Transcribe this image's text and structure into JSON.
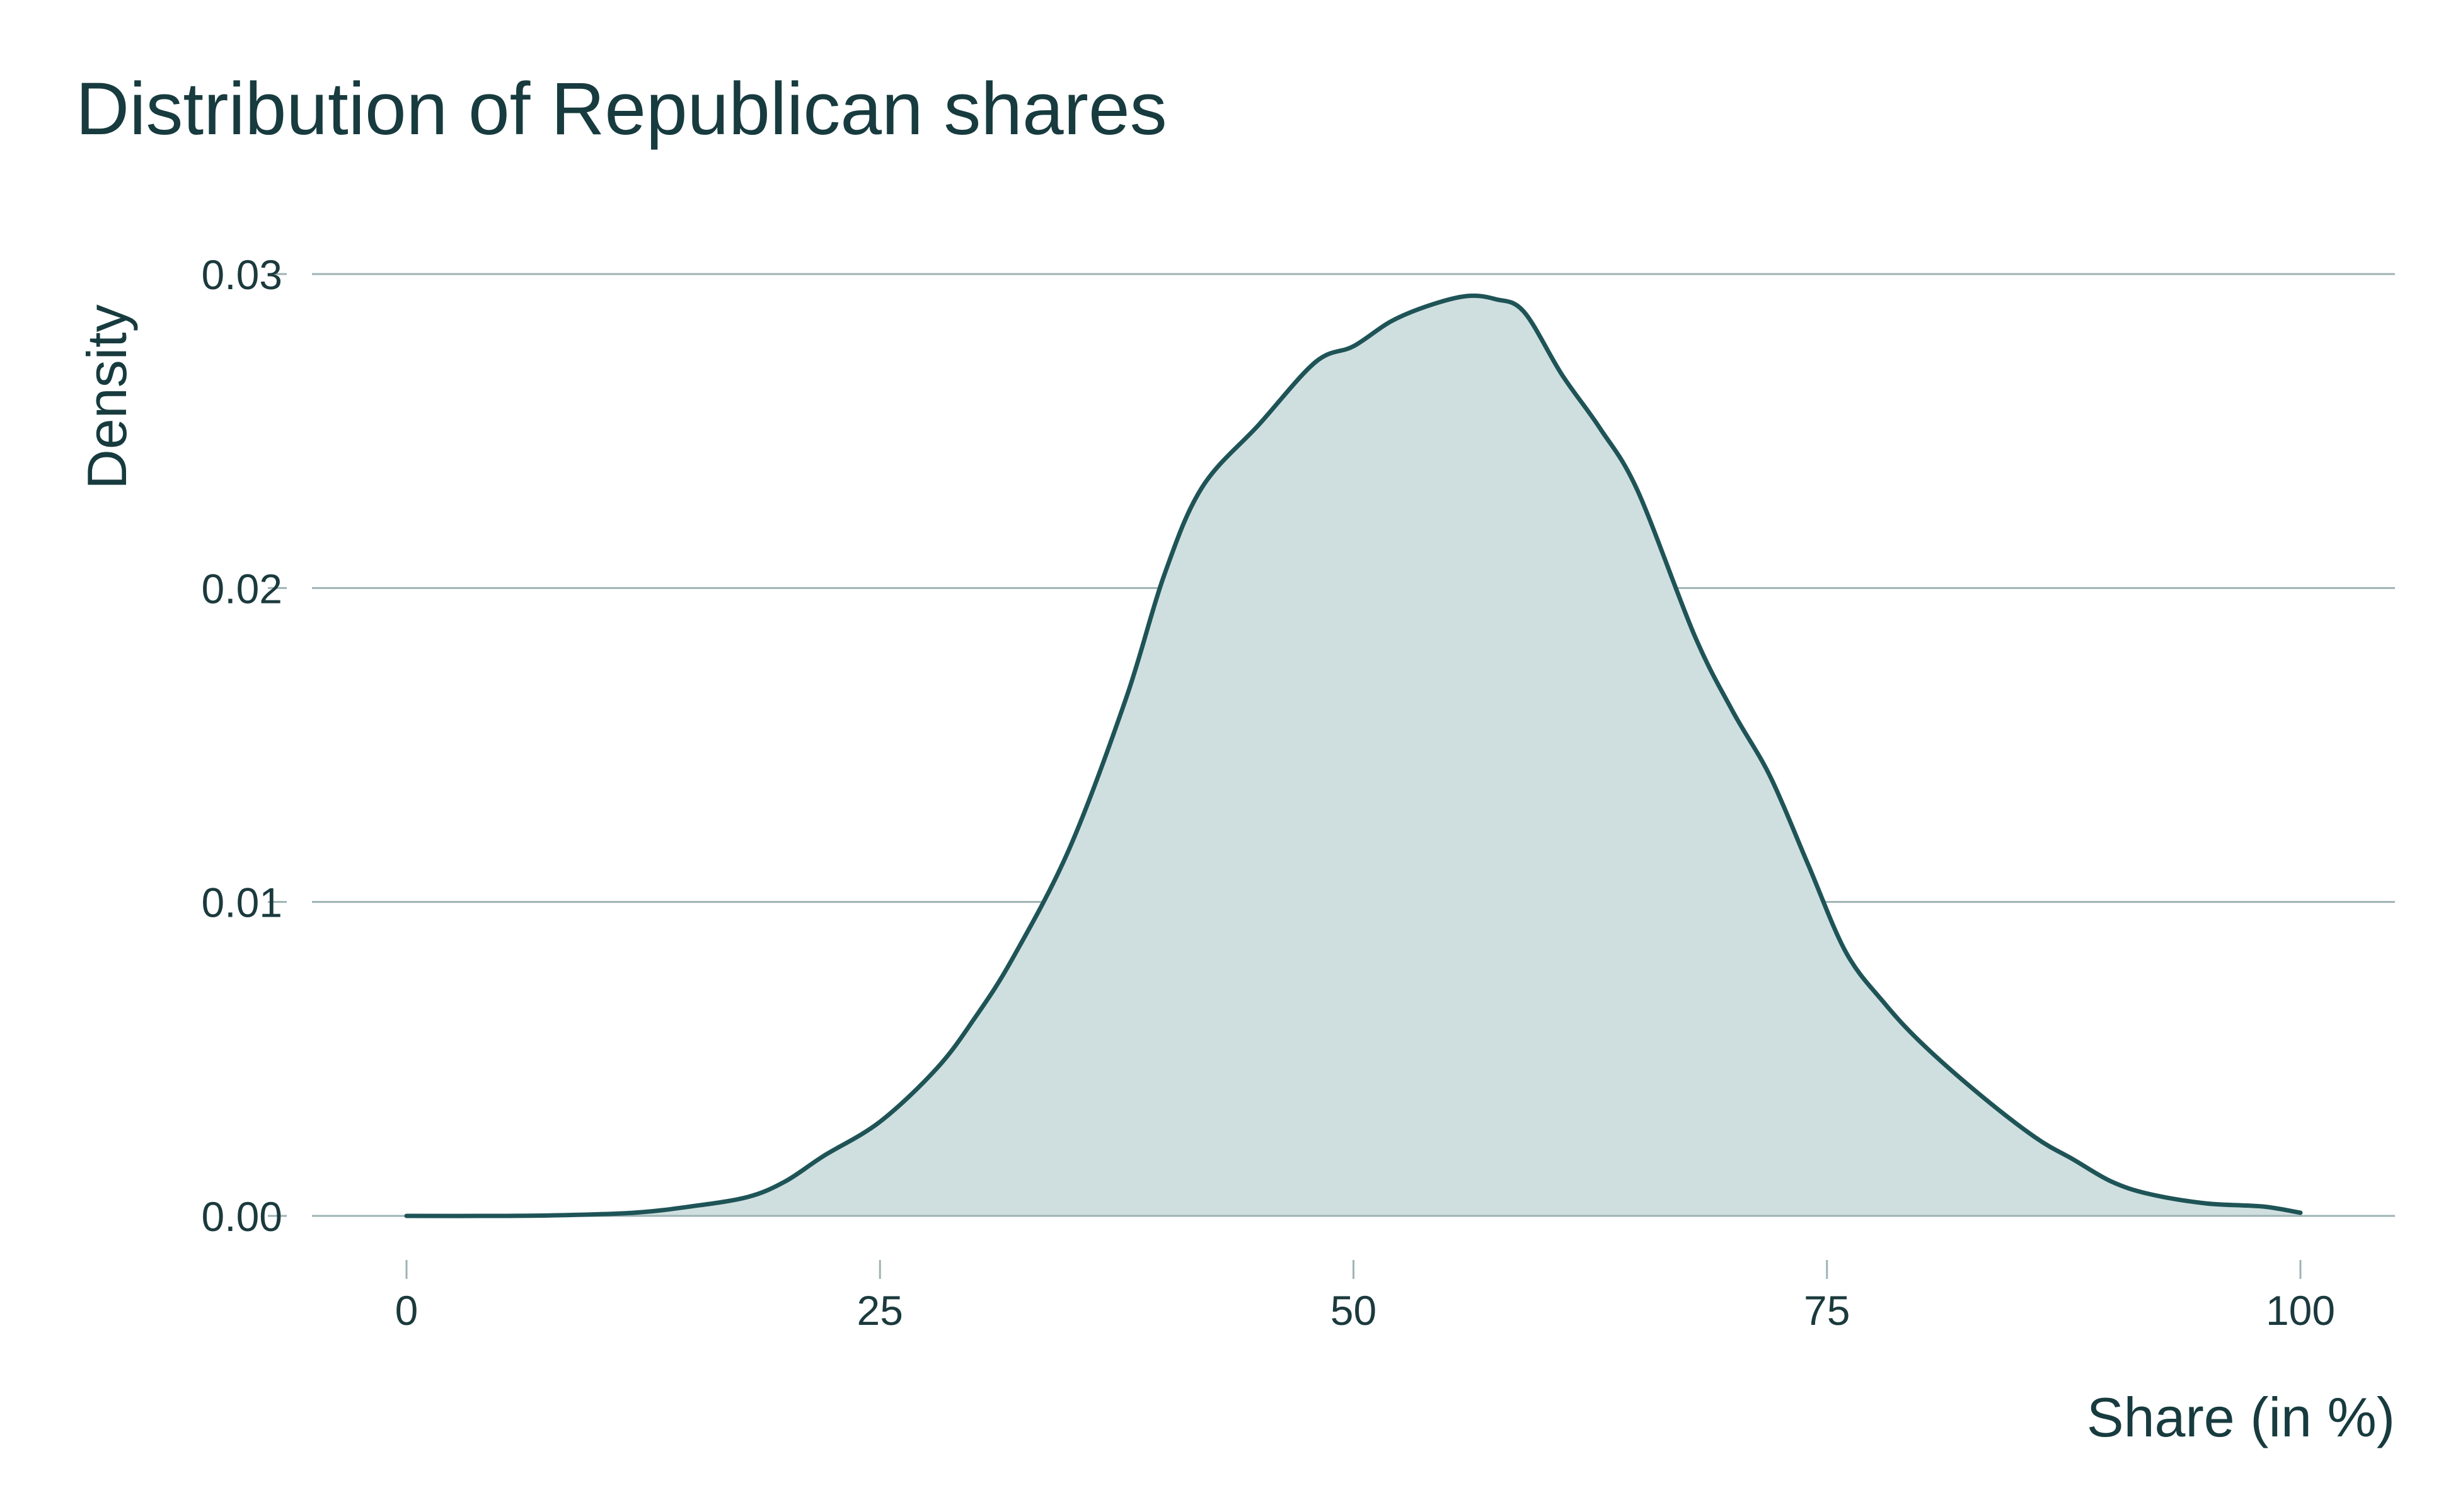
{
  "chart_data": {
    "type": "area",
    "title": "Distribution of Republican shares",
    "xlabel": "Share (in %)",
    "ylabel": "Density",
    "xlim": [
      0,
      100
    ],
    "ylim": [
      0,
      0.03
    ],
    "x_ticks": [
      0,
      25,
      50,
      75,
      100
    ],
    "x_tick_labels": [
      "0",
      "25",
      "50",
      "75",
      "100"
    ],
    "y_ticks": [
      0,
      0.01,
      0.02,
      0.03
    ],
    "y_tick_labels": [
      "0.00",
      "0.01",
      "0.02",
      "0.03"
    ],
    "grid": "horizontal",
    "legend": "none",
    "colors": {
      "line": "#1f5457",
      "fill": "#cfdfdf",
      "grid": "#9fb3b4",
      "text": "#1b3a3d"
    },
    "series": [
      {
        "x": [
          0,
          5,
          8,
          12,
          15,
          18,
          20,
          22,
          25,
          28,
          30,
          32,
          35,
          38,
          40,
          42,
          45,
          48,
          50,
          52,
          54,
          56,
          57.5,
          59,
          61,
          63,
          65,
          68,
          70,
          72,
          74,
          76,
          78,
          80,
          83,
          86,
          88,
          90,
          92,
          95,
          98,
          100
        ],
        "y": [
          0,
          0,
          2e-05,
          0.0001,
          0.0003,
          0.0006,
          0.0011,
          0.0019,
          0.003,
          0.0047,
          0.0063,
          0.0082,
          0.0117,
          0.0165,
          0.0204,
          0.0232,
          0.0252,
          0.0272,
          0.0277,
          0.0285,
          0.029,
          0.0293,
          0.0292,
          0.0288,
          0.0268,
          0.0251,
          0.0231,
          0.0185,
          0.0161,
          0.014,
          0.0112,
          0.0084,
          0.0068,
          0.0055,
          0.0039,
          0.0025,
          0.0018,
          0.0011,
          0.0007,
          0.0004,
          0.0003,
          0.0001
        ]
      }
    ]
  }
}
